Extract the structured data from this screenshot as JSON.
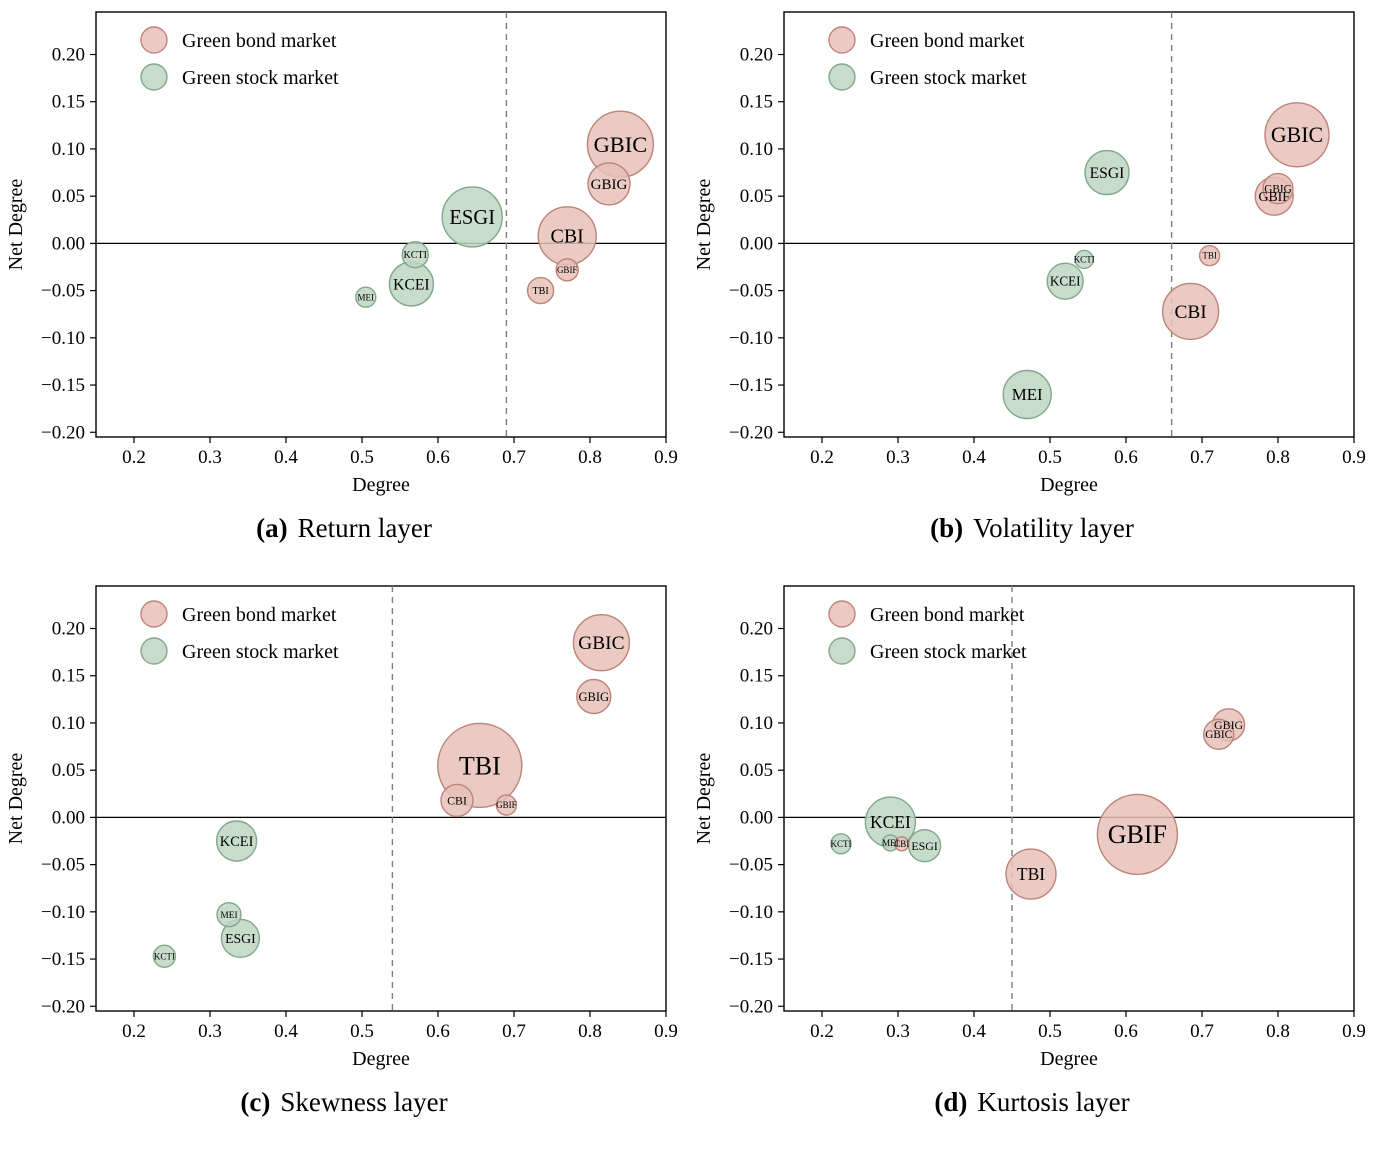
{
  "figure": {
    "background": "#ffffff"
  },
  "colors": {
    "bond_fill": "#e6c1b9",
    "bond_stroke": "#bd8478",
    "stock_fill": "#bdd6c2",
    "stock_stroke": "#83a78b",
    "vline": "#7f7f7f",
    "hline": "#000000",
    "axis": "#000000"
  },
  "legend": {
    "entries": [
      {
        "group": "bond",
        "label": "Green bond market"
      },
      {
        "group": "stock",
        "label": "Green stock market"
      }
    ]
  },
  "axes": {
    "xlabel": "Degree",
    "ylabel": "Net Degree",
    "xlim": [
      0.15,
      0.9
    ],
    "ylim": [
      -0.205,
      0.245
    ],
    "xticks": [
      0.2,
      0.3,
      0.4,
      0.5,
      0.6,
      0.7,
      0.8,
      0.9
    ],
    "yticks": [
      0.2,
      0.15,
      0.1,
      0.05,
      0.0,
      -0.05,
      -0.1,
      -0.15,
      -0.2
    ]
  },
  "chart_data": [
    {
      "type": "scatter",
      "id": "a",
      "caption_label": "(a)",
      "caption_title": "Return layer",
      "hline_y": 0,
      "vline_x": 0.69,
      "points": [
        {
          "label": "GBIC",
          "group": "bond",
          "x": 0.84,
          "y": 0.105,
          "r": 33
        },
        {
          "label": "GBIG",
          "group": "bond",
          "x": 0.825,
          "y": 0.063,
          "r": 21
        },
        {
          "label": "ESGI",
          "group": "stock",
          "x": 0.645,
          "y": 0.028,
          "r": 30
        },
        {
          "label": "CBI",
          "group": "bond",
          "x": 0.77,
          "y": 0.008,
          "r": 29
        },
        {
          "label": "KCTI",
          "group": "stock",
          "x": 0.57,
          "y": -0.012,
          "r": 13
        },
        {
          "label": "GBIF",
          "group": "bond",
          "x": 0.77,
          "y": -0.028,
          "r": 11
        },
        {
          "label": "KCEI",
          "group": "stock",
          "x": 0.565,
          "y": -0.043,
          "r": 22
        },
        {
          "label": "TBI",
          "group": "bond",
          "x": 0.735,
          "y": -0.05,
          "r": 13
        },
        {
          "label": "MEI",
          "group": "stock",
          "x": 0.505,
          "y": -0.057,
          "r": 10
        }
      ]
    },
    {
      "type": "scatter",
      "id": "b",
      "caption_label": "(b)",
      "caption_title": "Volatility layer",
      "hline_y": 0,
      "vline_x": 0.66,
      "points": [
        {
          "label": "GBIC",
          "group": "bond",
          "x": 0.825,
          "y": 0.115,
          "r": 32
        },
        {
          "label": "ESGI",
          "group": "stock",
          "x": 0.575,
          "y": 0.075,
          "r": 22
        },
        {
          "label": "GBIG",
          "group": "bond",
          "x": 0.8,
          "y": 0.058,
          "r": 15
        },
        {
          "label": "GBIF",
          "group": "bond",
          "x": 0.795,
          "y": 0.05,
          "r": 19
        },
        {
          "label": "TBI",
          "group": "bond",
          "x": 0.71,
          "y": -0.013,
          "r": 10
        },
        {
          "label": "KCTI",
          "group": "stock",
          "x": 0.545,
          "y": -0.017,
          "r": 9
        },
        {
          "label": "KCEI",
          "group": "stock",
          "x": 0.52,
          "y": -0.04,
          "r": 18
        },
        {
          "label": "CBI",
          "group": "bond",
          "x": 0.685,
          "y": -0.072,
          "r": 28
        },
        {
          "label": "MEI",
          "group": "stock",
          "x": 0.47,
          "y": -0.16,
          "r": 24
        }
      ]
    },
    {
      "type": "scatter",
      "id": "c",
      "caption_label": "(c)",
      "caption_title": "Skewness layer",
      "hline_y": 0,
      "vline_x": 0.54,
      "points": [
        {
          "label": "GBIC",
          "group": "bond",
          "x": 0.815,
          "y": 0.185,
          "r": 28
        },
        {
          "label": "GBIG",
          "group": "bond",
          "x": 0.805,
          "y": 0.128,
          "r": 17
        },
        {
          "label": "TBI",
          "group": "bond",
          "x": 0.655,
          "y": 0.055,
          "r": 42
        },
        {
          "label": "CBI",
          "group": "bond",
          "x": 0.625,
          "y": 0.018,
          "r": 16
        },
        {
          "label": "GBIF",
          "group": "bond",
          "x": 0.69,
          "y": 0.013,
          "r": 10
        },
        {
          "label": "KCEI",
          "group": "stock",
          "x": 0.335,
          "y": -0.025,
          "r": 20
        },
        {
          "label": "MEI",
          "group": "stock",
          "x": 0.325,
          "y": -0.103,
          "r": 12
        },
        {
          "label": "ESGI",
          "group": "stock",
          "x": 0.34,
          "y": -0.128,
          "r": 19
        },
        {
          "label": "KCTI",
          "group": "stock",
          "x": 0.24,
          "y": -0.147,
          "r": 11
        }
      ]
    },
    {
      "type": "scatter",
      "id": "d",
      "caption_label": "(d)",
      "caption_title": "Kurtosis layer",
      "hline_y": 0,
      "vline_x": 0.45,
      "points": [
        {
          "label": "GBIG",
          "group": "bond",
          "x": 0.735,
          "y": 0.098,
          "r": 16
        },
        {
          "label": "GBIC",
          "group": "bond",
          "x": 0.722,
          "y": 0.088,
          "r": 15
        },
        {
          "label": "KCEI",
          "group": "stock",
          "x": 0.29,
          "y": -0.005,
          "r": 25
        },
        {
          "label": "GBIF",
          "group": "bond",
          "x": 0.615,
          "y": -0.018,
          "r": 40
        },
        {
          "label": "KCTI",
          "group": "stock",
          "x": 0.225,
          "y": -0.028,
          "r": 10
        },
        {
          "label": "MEI",
          "group": "stock",
          "x": 0.29,
          "y": -0.027,
          "r": 8
        },
        {
          "label": "CBI",
          "group": "bond",
          "x": 0.305,
          "y": -0.028,
          "r": 7
        },
        {
          "label": "ESGI",
          "group": "stock",
          "x": 0.335,
          "y": -0.03,
          "r": 16
        },
        {
          "label": "TBI",
          "group": "bond",
          "x": 0.475,
          "y": -0.06,
          "r": 25
        }
      ]
    }
  ]
}
